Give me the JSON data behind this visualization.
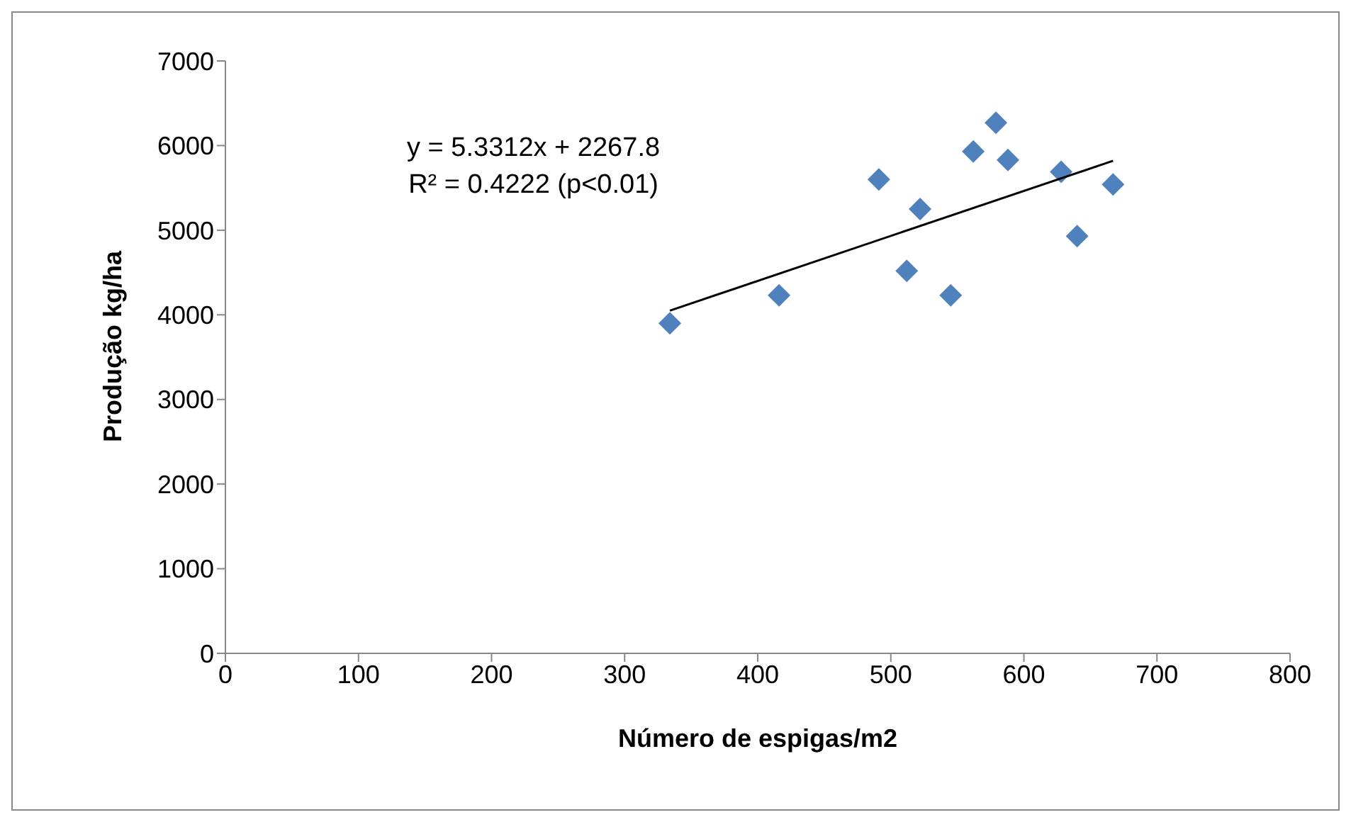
{
  "chart_data": {
    "type": "scatter",
    "xlabel": "Número de espigas/m2",
    "ylabel": "Produção kg/ha",
    "xlim": [
      0,
      800
    ],
    "xticks": [
      0,
      100,
      200,
      300,
      400,
      500,
      600,
      700,
      800
    ],
    "ylim": [
      0,
      7000
    ],
    "yticks": [
      0,
      1000,
      2000,
      3000,
      4000,
      5000,
      6000,
      7000
    ],
    "grid": false,
    "legend": false,
    "marker": "diamond",
    "annotations": [
      "y = 5.3312x + 2267.8",
      "R² = 0.4222 (p<0.01)"
    ],
    "series": [
      {
        "color": "#4f81bd",
        "x": [
          334,
          416,
          491,
          512,
          522,
          545,
          562,
          579,
          588,
          628,
          640,
          667
        ],
        "values": [
          3900,
          4230,
          5600,
          4520,
          5250,
          4230,
          5930,
          6270,
          5830,
          5690,
          4930,
          5540
        ]
      },
      {
        "type": "line",
        "color": "#000000",
        "marker": "none",
        "x": [
          334,
          667
        ],
        "values": [
          4050,
          5820
        ]
      }
    ]
  }
}
